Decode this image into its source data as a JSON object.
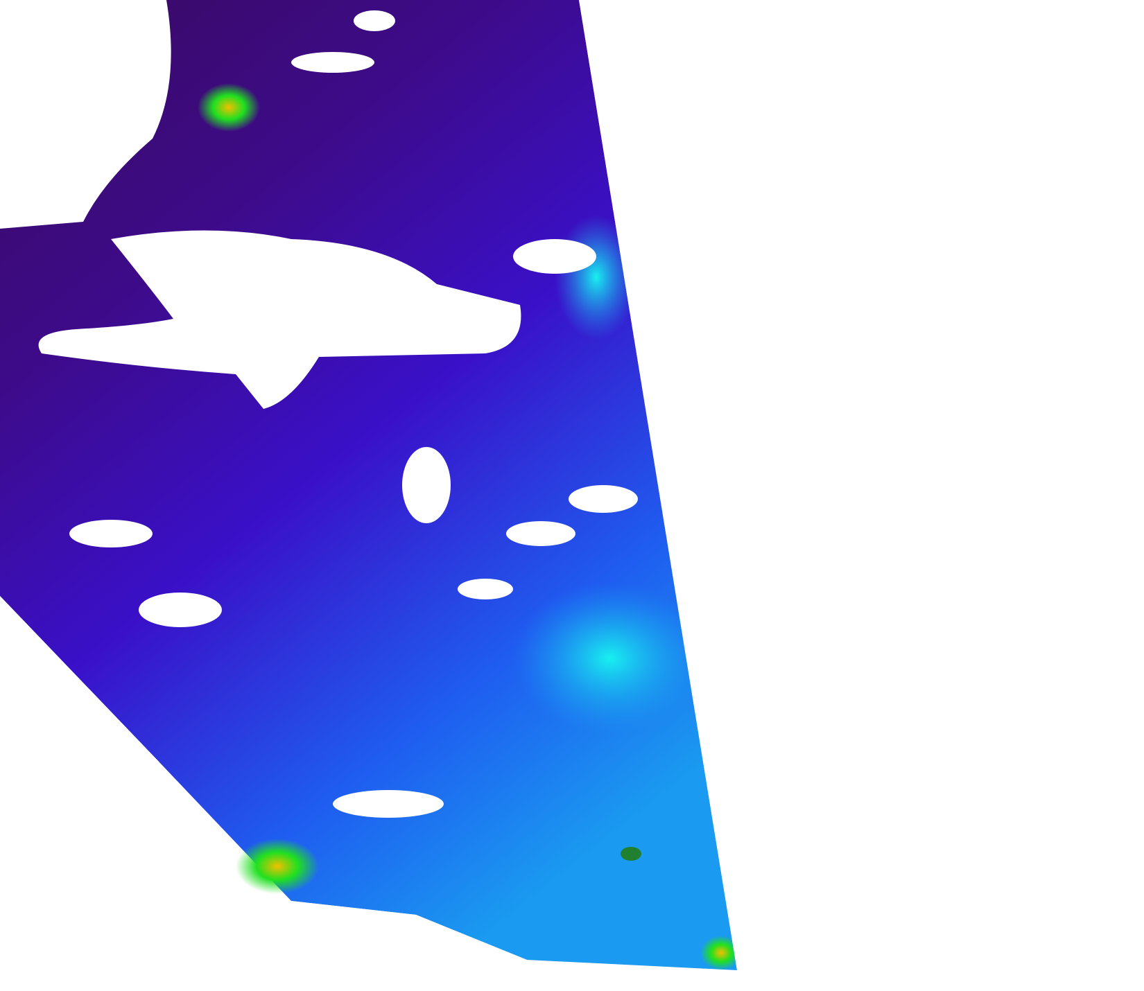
{
  "map": {
    "type": "satellite-swath",
    "colors": {
      "background": "#ffffff",
      "deep_low": "#3a0a5e",
      "low": "#3a10c8",
      "mid": "#1f5cf0",
      "high": "#18d8f0",
      "very_high": "#20e020",
      "peak": "#f0c000",
      "cloud_mask": "#ffffff"
    }
  }
}
